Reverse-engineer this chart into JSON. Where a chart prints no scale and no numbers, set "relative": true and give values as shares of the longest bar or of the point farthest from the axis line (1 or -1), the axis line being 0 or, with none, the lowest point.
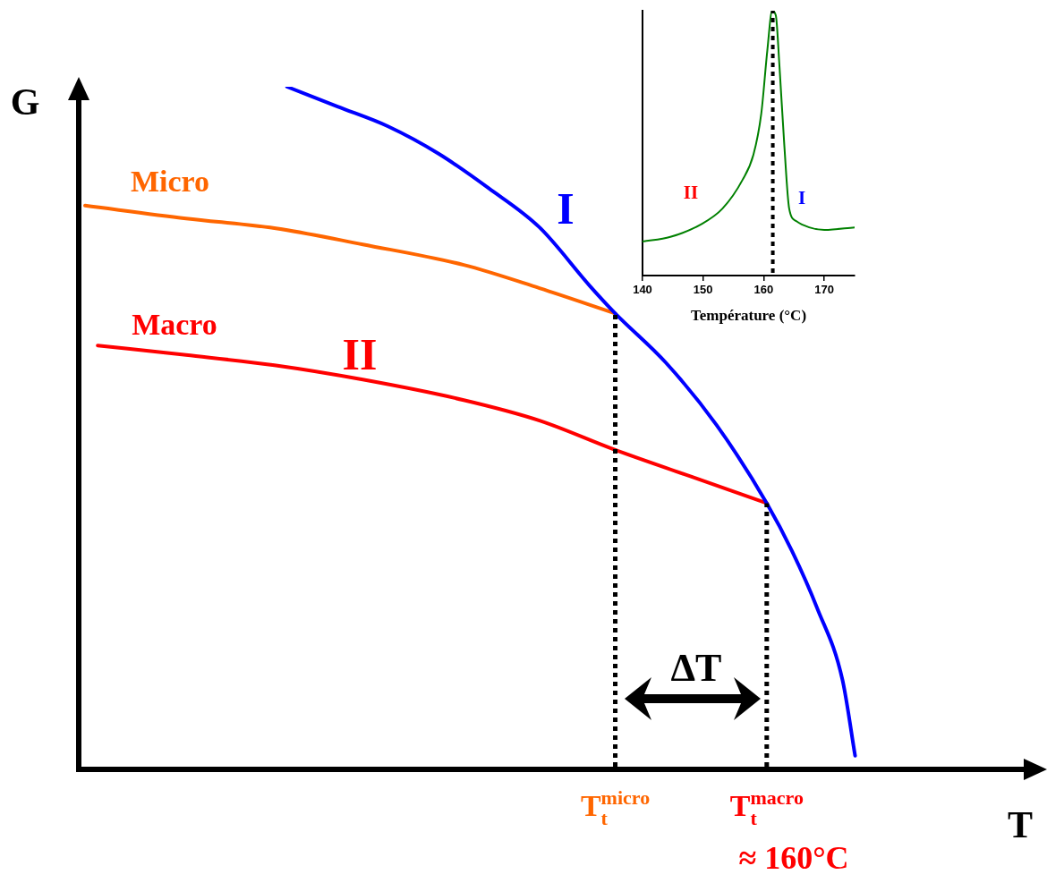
{
  "chart_data": [
    {
      "type": "line",
      "relative": true,
      "xlabel": "T",
      "ylabel": "G",
      "categories": [
        null,
        null,
        null,
        null,
        null,
        null,
        null,
        null,
        null,
        null,
        null,
        null,
        null,
        null,
        null,
        null,
        null,
        null,
        null,
        null,
        null,
        null,
        null,
        null,
        null,
        null,
        null,
        null,
        null,
        null,
        null,
        null,
        null,
        null,
        null,
        null,
        null,
        null,
        null,
        null,
        null,
        null,
        "T$_{t}$$^{micro}$",
        null,
        null,
        null,
        null,
        null,
        null,
        null,
        null,
        null,
        null,
        null,
        "T$_{t}$$^{macro}$",
        null,
        null,
        null,
        null,
        null,
        null,
        null,
        null,
        null,
        null,
        null,
        null,
        null,
        null,
        null,
        null,
        null,
        null,
        null,
        null
      ],
      "series": [
        {
          "name": "I",
          "color": "#0000ff",
          "values": [
            null,
            null,
            null,
            null,
            null,
            null,
            null,
            null,
            null,
            null,
            null,
            null,
            null,
            null,
            null,
            null,
            1,
            null,
            null,
            null,
            0.971,
            null,
            null,
            null,
            0.942,
            null,
            null,
            null,
            0.902,
            null,
            null,
            null,
            0.851,
            null,
            null,
            null,
            0.794,
            null,
            null,
            null,
            0.708,
            null,
            0.668,
            null,
            null,
            null,
            0.596,
            null,
            null,
            null,
            0.505,
            null,
            null,
            null,
            0.39,
            null,
            0.32,
            null,
            0.236,
            null,
            0.131,
            0.02,
            null,
            null,
            null,
            null,
            null,
            null,
            null,
            null,
            null,
            null,
            null,
            null,
            null
          ]
        },
        {
          "name": "Micro",
          "color": "#ff6600",
          "values": [
            0.826,
            null,
            null,
            null,
            null,
            null,
            null,
            null,
            0.807,
            null,
            null,
            null,
            null,
            null,
            null,
            0.793,
            null,
            null,
            null,
            null,
            null,
            null,
            0.769,
            null,
            null,
            null,
            null,
            null,
            null,
            null,
            0.739,
            null,
            null,
            null,
            null,
            null,
            0.705,
            null,
            null,
            null,
            null,
            null,
            0.668,
            null,
            null,
            null,
            null,
            null,
            null,
            null,
            null,
            null,
            null,
            null,
            null,
            null,
            null,
            null,
            null,
            null,
            null,
            null,
            null,
            null,
            null,
            null,
            null,
            null,
            null,
            null,
            null,
            null,
            null,
            null,
            null
          ]
        },
        {
          "name": "Macro",
          "color": "#ff0000",
          "values": [
            null,
            0.621,
            null,
            null,
            null,
            null,
            null,
            null,
            0.607,
            null,
            null,
            null,
            null,
            null,
            null,
            0.592,
            null,
            null,
            null,
            null,
            null,
            null,
            0.571,
            null,
            null,
            null,
            null,
            null,
            null,
            null,
            0.541,
            null,
            null,
            null,
            null,
            null,
            0.511,
            null,
            null,
            null,
            null,
            null,
            0.468,
            null,
            null,
            null,
            null,
            null,
            0.429,
            null,
            null,
            null,
            null,
            null,
            0.39,
            null,
            null,
            null,
            null,
            null,
            null,
            null,
            null,
            null,
            null,
            null,
            null,
            null,
            null,
            null,
            null,
            null,
            null,
            null,
            null
          ]
        }
      ],
      "ref_lines": [
        {
          "axis": "x",
          "value": "T$_{t}$$^{micro}$",
          "line_style": "dotted"
        },
        {
          "axis": "x",
          "value": "T$_{t}$$^{macro}$",
          "line_style": "dotted"
        }
      ],
      "annotations": [
        "II",
        "ΔT",
        "≈ 160°C"
      ]
    },
    {
      "type": "line",
      "relative": true,
      "xlabel": "Température (°C)",
      "xlim": [
        140,
        175
      ],
      "xticks": [
        140,
        150,
        160,
        170
      ],
      "x": [
        140,
        144.6,
        149.7,
        153.2,
        156.5,
        158.3,
        159.6,
        160.6,
        161.4,
        162,
        162.6,
        163.4,
        164.2,
        165.4,
        167.5,
        170,
        175
      ],
      "series": [
        {
          "color": "#008000",
          "values": [
            0.128,
            0.146,
            0.194,
            0.253,
            0.361,
            0.456,
            0.612,
            0.851,
            1,
            0.982,
            0.791,
            0.492,
            0.253,
            0.205,
            0.182,
            0.172,
            0.182
          ]
        }
      ],
      "ref_lines": [
        {
          "axis": "x",
          "value": 161.5,
          "line_style": "dotted"
        }
      ],
      "annotations": [
        "II",
        "I"
      ]
    }
  ]
}
